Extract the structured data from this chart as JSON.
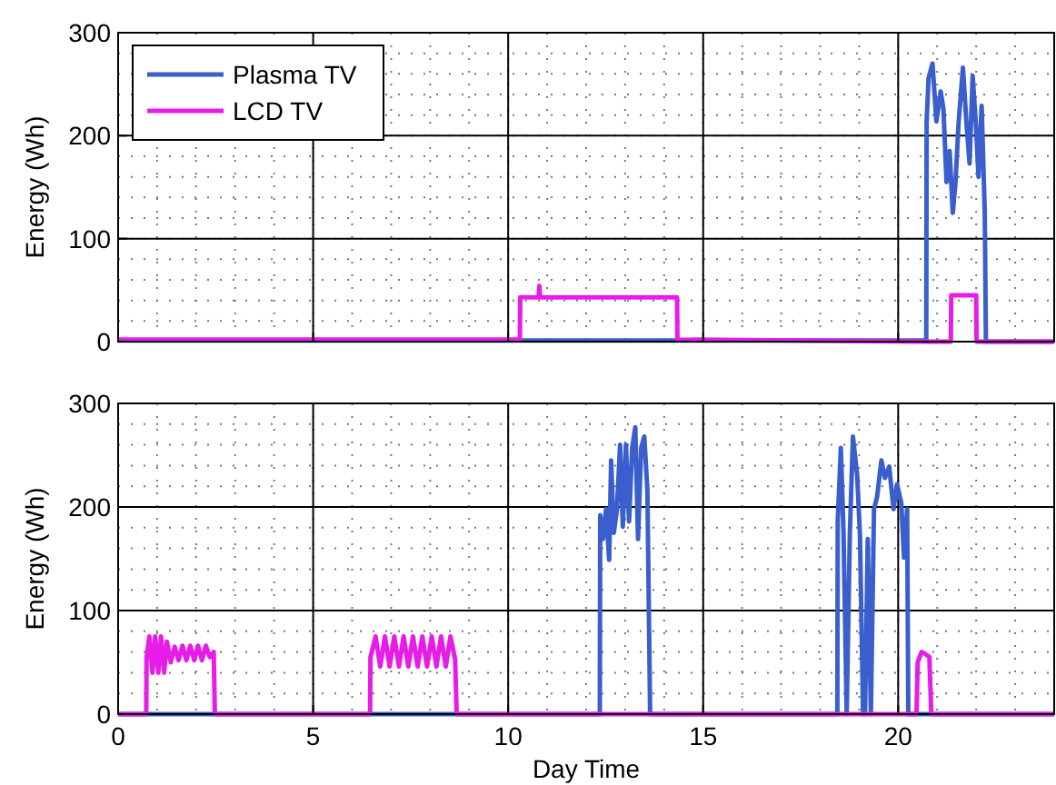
{
  "chart_data": [
    {
      "type": "line",
      "ylabel": "Energy (Wh)",
      "xlim": [
        0,
        24
      ],
      "xticks": [
        0,
        5,
        10,
        15,
        20
      ],
      "ylim": [
        0,
        300
      ],
      "yticks": [
        0,
        100,
        200,
        300
      ],
      "grid": true,
      "legend": "top left",
      "tick_labels": "y",
      "line_style": "solid",
      "series": [
        {
          "name": "Plasma TV",
          "color": "#3a5fcd",
          "x": [
            0,
            20.72,
            20.73,
            20.78,
            20.88,
            20.98,
            21.09,
            21.16,
            21.24,
            21.32,
            21.4,
            21.47,
            21.55,
            21.66,
            21.75,
            21.83,
            21.91,
            21.99,
            22.06,
            22.14,
            22.22,
            22.25,
            24
          ],
          "values": [
            1,
            1,
            214,
            256,
            270,
            214,
            243,
            226,
            155,
            185,
            125,
            155,
            213,
            266,
            213,
            173,
            258,
            213,
            160,
            229,
            125,
            0,
            0
          ]
        },
        {
          "name": "LCD TV",
          "color": "#e81ce8",
          "x": [
            0,
            10.3,
            10.31,
            10.78,
            10.8,
            10.82,
            14.33,
            14.34,
            20.7,
            21.35,
            21.36,
            22.0,
            22.01,
            24
          ],
          "values": [
            2,
            2,
            43,
            43,
            54,
            43,
            43,
            2,
            0,
            0,
            45,
            45,
            0,
            0
          ]
        }
      ]
    },
    {
      "type": "line",
      "xlabel": "Day Time",
      "ylabel": "Energy (Wh)",
      "xlim": [
        0,
        24
      ],
      "xticks": [
        0,
        5,
        10,
        15,
        20
      ],
      "ylim": [
        0,
        300
      ],
      "yticks": [
        0,
        100,
        200,
        300
      ],
      "grid": true,
      "legend": false,
      "line_style": "solid",
      "series": [
        {
          "color": "#3a5fcd",
          "x": [
            0,
            12.35,
            12.36,
            12.43,
            12.51,
            12.59,
            12.64,
            12.71,
            12.79,
            12.87,
            12.94,
            13.02,
            13.1,
            13.18,
            13.26,
            13.33,
            13.41,
            13.49,
            13.57,
            13.64,
            18.44,
            18.45,
            18.53,
            18.6,
            18.68,
            18.76,
            18.84,
            18.95,
            19.02,
            19.1,
            19.15,
            19.22,
            19.3,
            19.38,
            19.46,
            19.57,
            19.66,
            19.77,
            19.88,
            19.97,
            20.08,
            20.15,
            20.23,
            20.26,
            24
          ],
          "values": [
            0,
            0,
            192,
            169,
            198,
            149,
            245,
            175,
            198,
            260,
            181,
            260,
            186,
            257,
            277,
            169,
            257,
            268,
            216,
            0,
            0,
            186,
            257,
            173,
            0,
            173,
            268,
            230,
            173,
            0,
            0,
            169,
            0,
            198,
            210,
            245,
            228,
            239,
            198,
            222,
            204,
            151,
            198,
            0,
            0
          ]
        },
        {
          "color": "#e81ce8",
          "x": [
            0,
            0.72,
            0.73,
            0.8,
            0.88,
            0.95,
            1.03,
            1.1,
            1.18,
            1.25,
            1.35,
            1.45,
            1.55,
            1.65,
            1.75,
            1.85,
            1.95,
            2.05,
            2.15,
            2.25,
            2.35,
            2.45,
            2.48,
            6.46,
            6.47,
            6.6,
            6.72,
            6.84,
            6.96,
            7.08,
            7.2,
            7.32,
            7.44,
            7.56,
            7.68,
            7.8,
            7.92,
            8.04,
            8.16,
            8.28,
            8.4,
            8.52,
            8.64,
            8.68,
            20.46,
            20.47,
            20.5,
            20.6,
            20.7,
            20.8,
            20.85,
            24
          ],
          "values": [
            0,
            0,
            55,
            75,
            40,
            75,
            40,
            75,
            40,
            70,
            50,
            65,
            52,
            66,
            52,
            66,
            52,
            66,
            52,
            66,
            55,
            60,
            0,
            0,
            55,
            75,
            46,
            75,
            46,
            75,
            46,
            75,
            46,
            75,
            46,
            75,
            46,
            75,
            46,
            75,
            46,
            75,
            53,
            0,
            0,
            0,
            50,
            60,
            58,
            55,
            0,
            0
          ]
        }
      ]
    }
  ]
}
